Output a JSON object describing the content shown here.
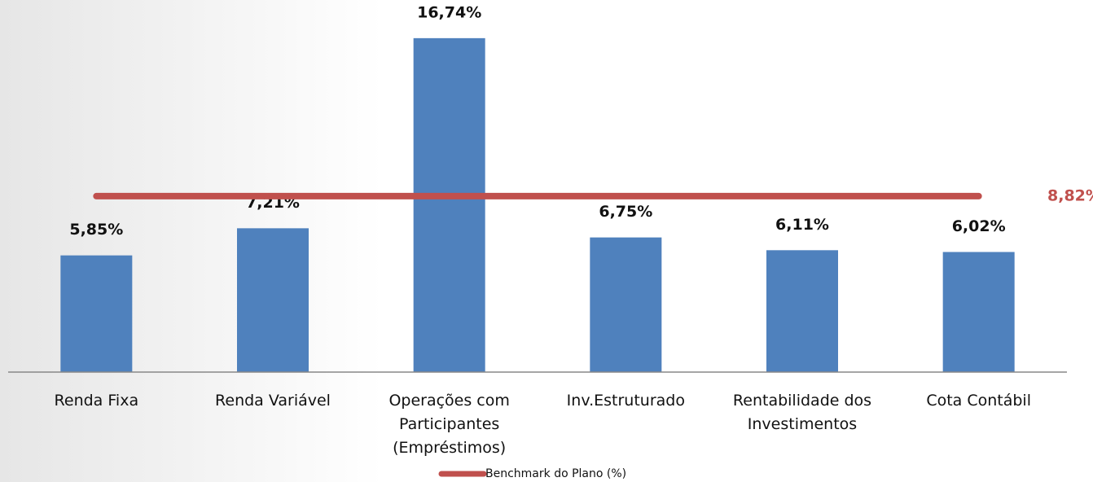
{
  "chart_data": {
    "type": "bar",
    "categories": [
      "Renda Fixa",
      "Renda Variável",
      "Operações com Participantes (Empréstimos)",
      "Inv.Estruturado",
      "Rentabilidade dos Investimentos",
      "Cota Contábil"
    ],
    "values": [
      5.85,
      7.21,
      16.74,
      6.75,
      6.11,
      6.02
    ],
    "value_labels": [
      "5,85%",
      "7,21%",
      "16,74%",
      "6,75%",
      "6,11%",
      "6,02%"
    ],
    "color": "#4f81bd",
    "ylim": [
      0,
      18
    ],
    "benchmark": {
      "name": "Benchmark do Plano (%)",
      "value": 8.82,
      "value_label": "8,82%",
      "color": "#c0504d"
    }
  }
}
